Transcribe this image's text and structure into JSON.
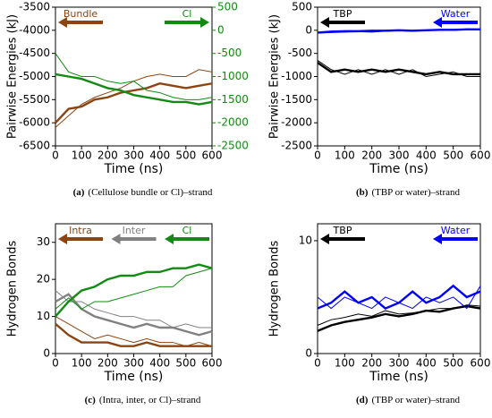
{
  "chart_data": [
    {
      "type": "line",
      "ylabel": "Pairwise Energies (kJ)",
      "xlabel": "Time (ns)",
      "caption_label": "(a)",
      "caption": "(Cellulose bundle or Cl)–strand",
      "x": [
        0,
        50,
        100,
        150,
        200,
        250,
        300,
        350,
        400,
        450,
        500,
        550,
        600
      ],
      "xlim": [
        0,
        600
      ],
      "xticks": [
        0,
        100,
        200,
        300,
        400,
        500,
        600
      ],
      "ylim": [
        -6500,
        -3500
      ],
      "yticks": [
        -6500,
        -6000,
        -5500,
        -5000,
        -4500,
        -4000,
        -3500
      ],
      "y2lim": [
        -2500,
        500
      ],
      "y2ticks": [
        -2500,
        -2000,
        -1500,
        -1000,
        -500,
        0,
        500
      ],
      "y2color": "#138a13",
      "series": [
        {
          "name": "Bundle",
          "color": "#8b4513",
          "arrow": "left",
          "axis": "y",
          "values": [
            -6000,
            -5700,
            -5650,
            -5500,
            -5450,
            -5350,
            -5300,
            -5250,
            -5150,
            -5200,
            -5250,
            -5200,
            -5150
          ],
          "values_thin": [
            -6100,
            -5850,
            -5600,
            -5450,
            -5350,
            -5250,
            -5100,
            -5000,
            -4950,
            -5000,
            -5000,
            -4850,
            -4900
          ]
        },
        {
          "name": "Cl",
          "color": "#138a13",
          "arrow": "right",
          "axis": "y2",
          "values": [
            -950,
            -1000,
            -1050,
            -1150,
            -1250,
            -1300,
            -1400,
            -1450,
            -1500,
            -1550,
            -1550,
            -1600,
            -1550
          ],
          "values_thin": [
            -500,
            -900,
            -1000,
            -1000,
            -1100,
            -1150,
            -1100,
            -1300,
            -1350,
            -1450,
            -1500,
            -1500,
            -1450
          ]
        }
      ]
    },
    {
      "type": "line",
      "ylabel": "Pairwise Energies (kJ)",
      "xlabel": "Time (ns)",
      "caption_label": "(b)",
      "caption": "(TBP or water)–strand",
      "x": [
        0,
        50,
        100,
        150,
        200,
        250,
        300,
        350,
        400,
        450,
        500,
        550,
        600
      ],
      "xlim": [
        0,
        600
      ],
      "xticks": [
        0,
        100,
        200,
        300,
        400,
        500,
        600
      ],
      "ylim": [
        -2500,
        500
      ],
      "yticks": [
        -2500,
        -2000,
        -1500,
        -1000,
        -500,
        0,
        500
      ],
      "series": [
        {
          "name": "TBP",
          "color": "#000000",
          "arrow": "left",
          "axis": "y",
          "values": [
            -700,
            -900,
            -850,
            -900,
            -850,
            -900,
            -850,
            -900,
            -950,
            -900,
            -950,
            -950,
            -950
          ],
          "values_thin": [
            -650,
            -850,
            -950,
            -850,
            -950,
            -850,
            -950,
            -850,
            -1000,
            -950,
            -900,
            -1000,
            -1000
          ]
        },
        {
          "name": "Water",
          "color": "#0000ff",
          "arrow": "left",
          "axis": "y",
          "values": [
            -50,
            -30,
            -20,
            -20,
            -10,
            -10,
            0,
            -10,
            0,
            10,
            10,
            20,
            20
          ],
          "values_thin": [
            -60,
            -50,
            -40,
            -30,
            -40,
            -20,
            -10,
            -20,
            0,
            0,
            10,
            30,
            20
          ]
        }
      ]
    },
    {
      "type": "line",
      "ylabel": "Hydrogen Bonds",
      "xlabel": "Time (ns)",
      "caption_label": "(c)",
      "caption": "(Intra, inter, or Cl)–strand",
      "x": [
        0,
        50,
        100,
        150,
        200,
        250,
        300,
        350,
        400,
        450,
        500,
        550,
        600
      ],
      "xlim": [
        0,
        600
      ],
      "xticks": [
        0,
        100,
        200,
        300,
        400,
        500,
        600
      ],
      "ylim": [
        0,
        35
      ],
      "yticks": [
        0,
        10,
        20,
        30
      ],
      "series": [
        {
          "name": "Intra",
          "color": "#8b4513",
          "arrow": "left",
          "axis": "y",
          "values": [
            8,
            5,
            3,
            3,
            3,
            2,
            2,
            3,
            2,
            2,
            2,
            2,
            2
          ],
          "values_thin": [
            10,
            8,
            6,
            4,
            5,
            4,
            3,
            4,
            3,
            3,
            2,
            3,
            2
          ]
        },
        {
          "name": "Inter",
          "color": "#808080",
          "arrow": "left",
          "axis": "y",
          "values": [
            14,
            16,
            12,
            10,
            9,
            8,
            7,
            8,
            7,
            7,
            6,
            5,
            6
          ],
          "values_thin": [
            17,
            14,
            14,
            12,
            11,
            10,
            10,
            9,
            9,
            7,
            8,
            7,
            7
          ]
        },
        {
          "name": "Cl",
          "color": "#138a13",
          "arrow": "left",
          "axis": "y",
          "values": [
            10,
            14,
            17,
            18,
            20,
            21,
            21,
            22,
            22,
            23,
            23,
            24,
            23
          ],
          "values_thin": [
            12,
            15,
            12,
            14,
            14,
            15,
            16,
            17,
            18,
            18,
            21,
            22,
            23
          ]
        }
      ]
    },
    {
      "type": "line",
      "ylabel": "Hydrogen Bonds",
      "xlabel": "Time (ns)",
      "caption_label": "(d)",
      "caption": "(TBP or water)–strand",
      "x": [
        0,
        50,
        100,
        150,
        200,
        250,
        300,
        350,
        400,
        450,
        500,
        550,
        600
      ],
      "xlim": [
        0,
        600
      ],
      "xticks": [
        0,
        100,
        200,
        300,
        400,
        500,
        600
      ],
      "ylim": [
        0,
        11.5
      ],
      "yticks": [
        0,
        10
      ],
      "series": [
        {
          "name": "TBP",
          "color": "#000000",
          "arrow": "left",
          "axis": "y",
          "values": [
            2,
            2.5,
            2.8,
            3,
            3.2,
            3.5,
            3.3,
            3.5,
            3.8,
            3.7,
            4,
            4.2,
            4
          ],
          "values_thin": [
            2.5,
            3,
            3.2,
            3.5,
            3.3,
            3.8,
            3.5,
            3.6,
            3.8,
            4,
            4,
            4.3,
            4.2
          ]
        },
        {
          "name": "Water",
          "color": "#0000ff",
          "arrow": "left",
          "axis": "y",
          "values": [
            4,
            4.5,
            5.5,
            4.5,
            5,
            4,
            4.5,
            5.5,
            4.5,
            5,
            6,
            5,
            5.5
          ],
          "values_thin": [
            5,
            4,
            5,
            4.5,
            4,
            5,
            4.5,
            4,
            5,
            4.5,
            5,
            4,
            6
          ]
        }
      ]
    }
  ]
}
